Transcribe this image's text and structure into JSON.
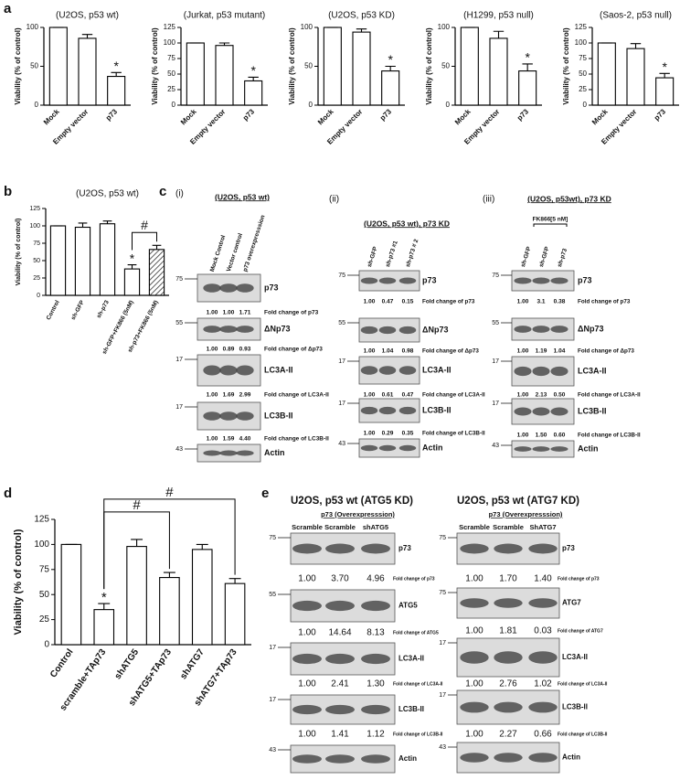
{
  "panel_labels": {
    "a": "a",
    "b": "b",
    "c": "c",
    "d": "d",
    "e": "e"
  },
  "chart_data": [
    {
      "type": "bar",
      "title": "(U2OS, p53 wt)",
      "ylabel": "Viability (% of control)",
      "categories": [
        "Mock",
        "Empty vector",
        "p73"
      ],
      "values": [
        100,
        86,
        37
      ],
      "errors": [
        0,
        5,
        5
      ],
      "ylim": [
        0,
        100
      ],
      "yticks": [
        0,
        50,
        100
      ],
      "annotations": [
        {
          "text": "*",
          "category": "p73"
        }
      ]
    },
    {
      "type": "bar",
      "title": "(Jurkat, p53 mutant)",
      "ylabel": "Viability (% of control)",
      "categories": [
        "Mock",
        "Empty vector",
        "p73"
      ],
      "values": [
        100,
        96,
        39
      ],
      "errors": [
        0,
        4,
        6
      ],
      "ylim": [
        0,
        125
      ],
      "yticks": [
        0,
        25,
        50,
        75,
        100,
        125
      ],
      "annotations": [
        {
          "text": "*",
          "category": "p73"
        }
      ]
    },
    {
      "type": "bar",
      "title": "(U2OS, p53 KD)",
      "ylabel": "Viability (% of control)",
      "categories": [
        "Mock",
        "Empty vector",
        "p73"
      ],
      "values": [
        100,
        94,
        44
      ],
      "errors": [
        0,
        4,
        6
      ],
      "ylim": [
        0,
        100
      ],
      "yticks": [
        0,
        50,
        100
      ],
      "annotations": [
        {
          "text": "*",
          "category": "p73"
        }
      ]
    },
    {
      "type": "bar",
      "title": "(H1299, p53 null)",
      "ylabel": "Viability (% of control)",
      "categories": [
        "Mock",
        "Empty vector",
        "p73"
      ],
      "values": [
        100,
        86,
        44
      ],
      "errors": [
        0,
        9,
        9
      ],
      "ylim": [
        0,
        100
      ],
      "yticks": [
        0,
        50,
        100
      ],
      "annotations": [
        {
          "text": "*",
          "category": "p73"
        }
      ]
    },
    {
      "type": "bar",
      "title": "(Saos-2, p53 null)",
      "ylabel": "Viability (% of control)",
      "categories": [
        "Mock",
        "Empty vector",
        "p73"
      ],
      "values": [
        100,
        91,
        44
      ],
      "errors": [
        0,
        8,
        7
      ],
      "ylim": [
        0,
        125
      ],
      "yticks": [
        0,
        25,
        50,
        75,
        100,
        125
      ],
      "annotations": [
        {
          "text": "*",
          "category": "p73"
        }
      ]
    },
    {
      "type": "bar",
      "title": "(U2OS, p53 wt)",
      "ylabel": "Viability (% of control)",
      "categories": [
        "Control",
        "sh-GFP",
        "sh-p73",
        "sh-GFP+FK866 (5nM)",
        "sh-p73+FK866 (5nM)"
      ],
      "values": [
        100,
        98,
        103,
        38,
        66
      ],
      "errors": [
        0,
        6,
        4,
        6,
        6
      ],
      "ylim": [
        0,
        125
      ],
      "yticks": [
        0,
        25,
        50,
        75,
        100,
        125
      ],
      "hatched_category": "sh-p73+FK866 (5nM)",
      "annotations": [
        {
          "text": "*",
          "category": "sh-GFP+FK866 (5nM)"
        }
      ],
      "brackets": [
        {
          "text": "#",
          "from": "sh-GFP+FK866 (5nM)",
          "to": "sh-p73+FK866 (5nM)"
        }
      ]
    },
    {
      "type": "bar",
      "ylabel": "Viability (% of control)",
      "categories": [
        "Control",
        "scramble+TAp73",
        "shATG5",
        "shATG5+TAp73",
        "shATG7",
        "shATG7+TAp73"
      ],
      "values": [
        100,
        35,
        98,
        67,
        95,
        61
      ],
      "errors": [
        0,
        6,
        7,
        5,
        5,
        5
      ],
      "ylim": [
        0,
        125
      ],
      "yticks": [
        0,
        25,
        50,
        75,
        100,
        125
      ],
      "annotations": [
        {
          "text": "*",
          "category": "scramble+TAp73"
        }
      ],
      "brackets": [
        {
          "text": "#",
          "from": "scramble+TAp73",
          "to": "shATG5+TAp73"
        },
        {
          "text": "#",
          "from": "scramble+TAp73",
          "to": "shATG7+TAp73"
        }
      ]
    }
  ],
  "blots": {
    "c": [
      {
        "roman": "(i)",
        "title": "(U2OS, p53 wt)",
        "lanes": [
          "Mock Control",
          "Vector control",
          "p73 overexpresssion"
        ],
        "rows": [
          {
            "marker": 75,
            "protein": "p73",
            "folds": [
              "1.00",
              "1.00",
              "1.71"
            ],
            "fold_label": "Fold change of p73"
          },
          {
            "marker": 55,
            "protein": "ΔNp73",
            "folds": [
              "1.00",
              "0.89",
              "0.93"
            ],
            "fold_label": "Fold change of Δp73"
          },
          {
            "marker": 17,
            "protein": "LC3A-II",
            "folds": [
              "1.00",
              "1.69",
              "2.99"
            ],
            "fold_label": "Fold change of LC3A-II"
          },
          {
            "marker": 17,
            "protein": "LC3B-II",
            "folds": [
              "1.00",
              "1.59",
              "4.40"
            ],
            "fold_label": "Fold change of LC3B-II"
          },
          {
            "marker": 43,
            "protein": "Actin"
          }
        ]
      },
      {
        "roman": "(ii)",
        "title": "(U2OS, p53 wt), p73 KD",
        "lanes": [
          "sh-GFP",
          "sh-p73 #1",
          "sh-p73 # 2"
        ],
        "rows": [
          {
            "marker": 75,
            "protein": "p73",
            "folds": [
              "1.00",
              "0.47",
              "0.15"
            ],
            "fold_label": "Fold change of p73"
          },
          {
            "marker": 55,
            "protein": "ΔNp73",
            "folds": [
              "1.00",
              "1.04",
              "0.98"
            ],
            "fold_label": "Fold change of Δp73"
          },
          {
            "marker": 17,
            "protein": "LC3A-II",
            "folds": [
              "1.00",
              "0.61",
              "0.47"
            ],
            "fold_label": "Fold change of LC3A-II"
          },
          {
            "marker": 17,
            "protein": "LC3B-II",
            "folds": [
              "1.00",
              "0.29",
              "0.35"
            ],
            "fold_label": "Fold change of LC3B-II"
          },
          {
            "marker": 43,
            "protein": "Actin"
          }
        ]
      },
      {
        "roman": "(iii)",
        "title": "(U2OS, p53wt), p73 KD",
        "treatment": "FK866[5 nM]",
        "lanes": [
          "sh-GFP",
          "sh-GFP",
          "sh-p73"
        ],
        "rows": [
          {
            "marker": 75,
            "protein": "p73",
            "folds": [
              "1.00",
              "3.1",
              "0.38"
            ],
            "fold_label": "Fold change of p73"
          },
          {
            "marker": 55,
            "protein": "ΔNp73",
            "folds": [
              "1.00",
              "1.19",
              "1.04"
            ],
            "fold_label": "Fold change of Δp73"
          },
          {
            "marker": 17,
            "protein": "LC3A-II",
            "folds": [
              "1.00",
              "2.13",
              "0.50"
            ],
            "fold_label": "Fold change of LC3A-II"
          },
          {
            "marker": 17,
            "protein": "LC3B-II",
            "folds": [
              "1.00",
              "1.50",
              "0.60"
            ],
            "fold_label": "Fold change of LC3B-II"
          },
          {
            "marker": 43,
            "protein": "Actin"
          }
        ]
      }
    ],
    "e": [
      {
        "title": "U2OS, p53 wt (ATG5 KD)",
        "treatment": "p73 (Overexpresssion)",
        "lanes": [
          "Scramble",
          "Scramble",
          "shATG5"
        ],
        "rows": [
          {
            "marker": 75,
            "protein": "p73",
            "folds": [
              "1.00",
              "3.70",
              "4.96"
            ],
            "fold_label": "Fold change of p73"
          },
          {
            "marker": 55,
            "protein": "ATG5",
            "folds": [
              "1.00",
              "14.64",
              "8.13"
            ],
            "fold_label": "Fold change of ATG5"
          },
          {
            "marker": 17,
            "protein": "LC3A-II",
            "folds": [
              "1.00",
              "2.41",
              "1.30"
            ],
            "fold_label": "Fold change of LC3A-II"
          },
          {
            "marker": 17,
            "protein": "LC3B-II",
            "folds": [
              "1.00",
              "1.41",
              "1.12"
            ],
            "fold_label": "Fold change of LC3B-II"
          },
          {
            "marker": 43,
            "protein": "Actin"
          }
        ]
      },
      {
        "title": "U2OS, p53 wt (ATG7 KD)",
        "treatment": "p73 (Overexpresssion)",
        "lanes": [
          "Scramble",
          "Scramble",
          "ShATG7"
        ],
        "rows": [
          {
            "marker": 75,
            "protein": "p73",
            "folds": [
              "1.00",
              "1.70",
              "1.40"
            ],
            "fold_label": "Fold change of p73"
          },
          {
            "marker": 75,
            "protein": "ATG7",
            "folds": [
              "1.00",
              "1.81",
              "0.03"
            ],
            "fold_label": "Fold change of ATG7"
          },
          {
            "marker": 17,
            "protein": "LC3A-II",
            "folds": [
              "1.00",
              "2.76",
              "1.02"
            ],
            "fold_label": "Fold change of LC3A-II"
          },
          {
            "marker": 17,
            "protein": "LC3B-II",
            "folds": [
              "1.00",
              "2.27",
              "0.66"
            ],
            "fold_label": "Fold change of LC3B-II"
          },
          {
            "marker": 43,
            "protein": "Actin"
          }
        ]
      }
    ]
  }
}
